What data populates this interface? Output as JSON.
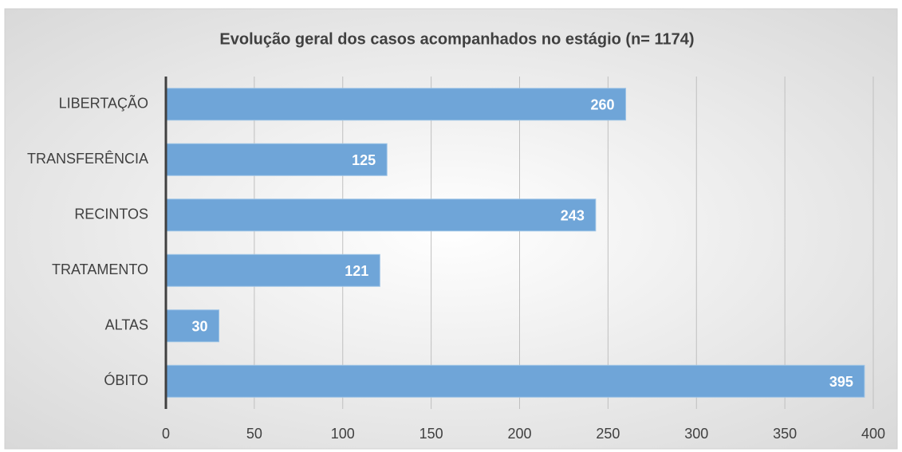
{
  "chart_data": {
    "type": "bar",
    "orientation": "horizontal",
    "title": "Evolução geral dos casos acompanhados no estágio (n= 1174)",
    "categories": [
      "LIBERTAÇÃO",
      "TRANSFERÊNCIA",
      "RECINTOS",
      "TRATAMENTO",
      "ALTAS",
      "ÓBITO"
    ],
    "values": [
      260,
      125,
      243,
      121,
      30,
      395
    ],
    "color": "#6fa5d8",
    "xlim": [
      0,
      400
    ],
    "xticks": [
      0,
      50,
      100,
      150,
      200,
      250,
      300,
      350,
      400
    ],
    "grid": true
  }
}
